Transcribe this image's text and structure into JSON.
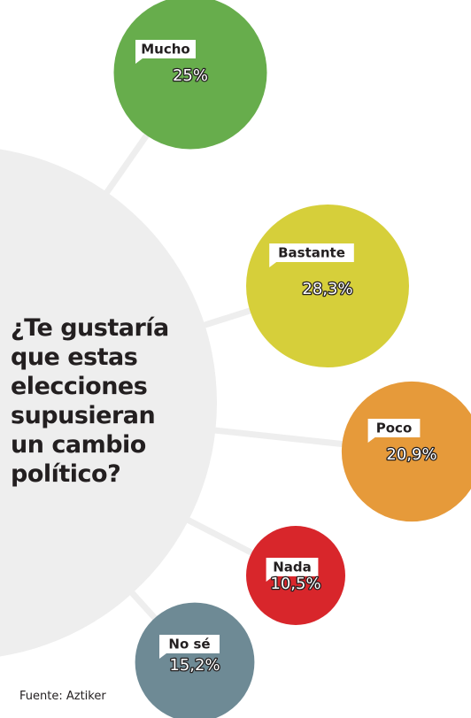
{
  "question": {
    "lines": [
      "¿Te gustaría",
      "que estas",
      "elecciones",
      "supusieran",
      "un cambio",
      "político?"
    ]
  },
  "source": "Fuente: Aztiker",
  "chart_data": {
    "type": "bubble",
    "categories": [
      "Mucho",
      "Bastante",
      "Poco",
      "Nada",
      "No sé"
    ],
    "values": [
      25,
      28.3,
      20.9,
      10.5,
      15.2
    ],
    "value_labels": [
      "25%",
      "28,3%",
      "20,9%",
      "10,5%",
      "15,2%"
    ],
    "unit": "%",
    "colors": [
      "#67ad4c",
      "#d6cf3a",
      "#e69a3a",
      "#d8262b",
      "#6e8a95"
    ],
    "hub_color": "#eeeeee",
    "spoke_color": "#eeeeee"
  }
}
